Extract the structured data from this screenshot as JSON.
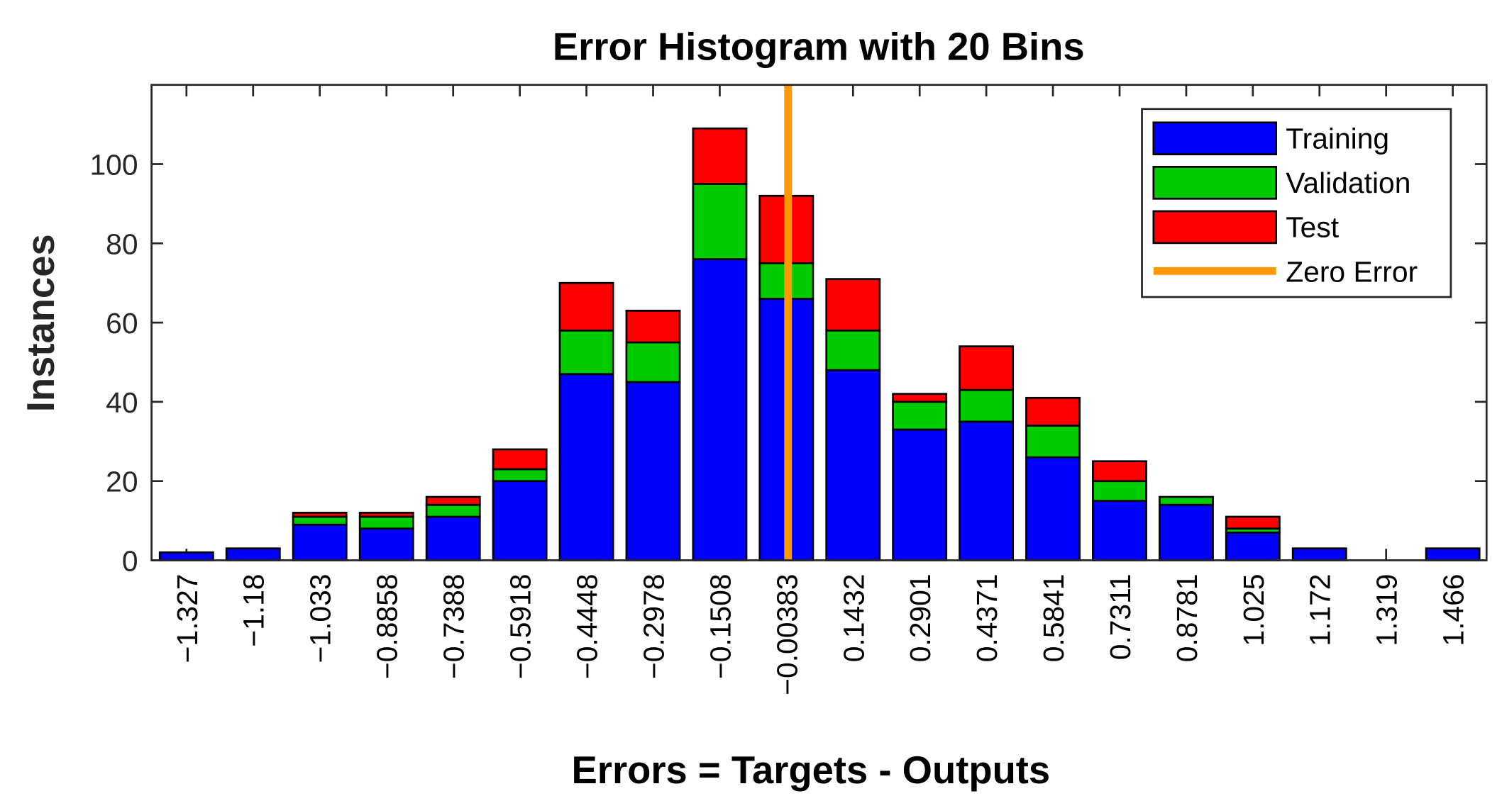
{
  "chart_data": {
    "type": "stacked_histogram",
    "title": "Error Histogram with 20 Bins",
    "x_label": "Errors = Targets - Outputs",
    "y_label": "Instances",
    "x": [
      -1.327,
      -1.18,
      -1.033,
      -0.8858,
      -0.7388,
      -0.5918,
      -0.4448,
      -0.2978,
      -0.1508,
      -0.00383,
      0.1432,
      0.2901,
      0.4371,
      0.5841,
      0.7311,
      0.8781,
      1.025,
      1.172,
      1.319,
      1.466
    ],
    "xticks": [
      {
        "value": -1.327,
        "label": "−1.327"
      },
      {
        "value": -1.18,
        "label": "−1.18"
      },
      {
        "value": -1.033,
        "label": "−1.033"
      },
      {
        "value": -0.8858,
        "label": "−0.8858"
      },
      {
        "value": -0.7388,
        "label": "−0.7388"
      },
      {
        "value": -0.5918,
        "label": "−0.5918"
      },
      {
        "value": -0.4448,
        "label": "−0.4448"
      },
      {
        "value": -0.2978,
        "label": "−0.2978"
      },
      {
        "value": -0.1508,
        "label": "−0.1508"
      },
      {
        "value": -0.00383,
        "label": "−0.00383"
      },
      0.1432,
      0.2901,
      0.4371,
      0.5841,
      0.7311,
      0.8781,
      1.025,
      1.172,
      1.319,
      1.466
    ],
    "xlim": [
      -1.404,
      1.5405
    ],
    "ylim": [
      0,
      120
    ],
    "yticks": [
      0,
      20,
      40,
      60,
      80,
      100
    ],
    "series": [
      {
        "name": "Training",
        "color": "#0000ff",
        "values": [
          2,
          3,
          9,
          8,
          11,
          20,
          47,
          45,
          76,
          66,
          48,
          33,
          35,
          26,
          15,
          14,
          7,
          3,
          0,
          3
        ]
      },
      {
        "name": "Validation",
        "color": "#00cc00",
        "values": [
          0,
          0,
          2,
          3,
          3,
          3,
          11,
          10,
          19,
          9,
          10,
          7,
          8,
          8,
          5,
          2,
          1,
          0,
          0,
          0
        ]
      },
      {
        "name": "Test",
        "color": "#ff0000",
        "values": [
          0,
          0,
          1,
          1,
          2,
          5,
          12,
          8,
          14,
          17,
          13,
          2,
          11,
          7,
          5,
          0,
          3,
          0,
          0,
          0
        ]
      }
    ],
    "zero_line": {
      "name": "Zero Error",
      "color": "#ff9900",
      "x": 0
    },
    "legend": "northeast"
  }
}
